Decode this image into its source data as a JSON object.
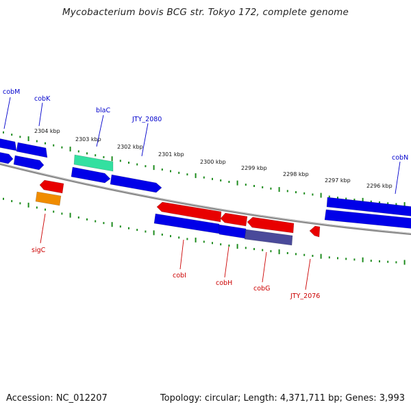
{
  "title": "Mycobacterium bovis BCG str. Tokyo 172, complete genome",
  "accession": "Accession: NC_012207",
  "topology": "Topology: circular; Length: 4,371,711 bp; Genes: 3,993",
  "colors": {
    "backbone": "#8a8a8a",
    "tick": "#1e8c1e",
    "forward_gene": "#0000e8",
    "reverse_gene": "#e80000",
    "rrna_like": "#33e0a0",
    "orange_feature": "#f08c00",
    "slate_feature": "#4a4a9a",
    "forward_label": "#0000cc",
    "reverse_label": "#cc0000"
  },
  "scale_labels": [
    "2304 kbp",
    "2303 kbp",
    "2302 kbp",
    "2301 kbp",
    "2300 kbp",
    "2299 kbp",
    "2298 kbp",
    "2297 kbp",
    "2296 kbp"
  ],
  "forward_gene_labels": [
    "cobM",
    "cobK",
    "blaC",
    "JTY_2080",
    "cobN"
  ],
  "reverse_gene_labels": [
    "sigC",
    "cobI",
    "cobH",
    "cobG",
    "JTY_2076"
  ]
}
